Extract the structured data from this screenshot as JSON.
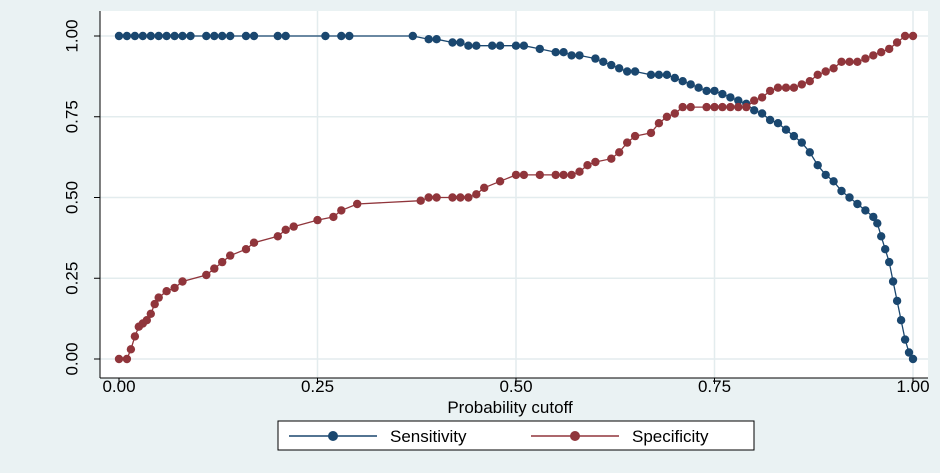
{
  "chart_data": {
    "type": "line",
    "title": "",
    "xlabel": "Probability cutoff",
    "ylabel": "",
    "xlim": [
      0,
      1
    ],
    "ylim": [
      0,
      1
    ],
    "x_ticks": [
      {
        "value": 0.0,
        "label": "0.00"
      },
      {
        "value": 0.25,
        "label": "0.25"
      },
      {
        "value": 0.5,
        "label": "0.50"
      },
      {
        "value": 0.75,
        "label": "0.75"
      },
      {
        "value": 1.0,
        "label": "1.00"
      }
    ],
    "y_ticks": [
      {
        "value": 0.0,
        "label": "0.00"
      },
      {
        "value": 0.25,
        "label": "0.25"
      },
      {
        "value": 0.5,
        "label": "0.50"
      },
      {
        "value": 0.75,
        "label": "0.75"
      },
      {
        "value": 1.0,
        "label": "1.00"
      }
    ],
    "grid": true,
    "legend_position": "bottom",
    "series": [
      {
        "name": "Sensitivity",
        "color": "#1a476f",
        "points": [
          [
            0.0,
            1.0
          ],
          [
            0.01,
            1.0
          ],
          [
            0.02,
            1.0
          ],
          [
            0.03,
            1.0
          ],
          [
            0.04,
            1.0
          ],
          [
            0.05,
            1.0
          ],
          [
            0.06,
            1.0
          ],
          [
            0.07,
            1.0
          ],
          [
            0.08,
            1.0
          ],
          [
            0.09,
            1.0
          ],
          [
            0.11,
            1.0
          ],
          [
            0.12,
            1.0
          ],
          [
            0.13,
            1.0
          ],
          [
            0.14,
            1.0
          ],
          [
            0.16,
            1.0
          ],
          [
            0.17,
            1.0
          ],
          [
            0.2,
            1.0
          ],
          [
            0.21,
            1.0
          ],
          [
            0.26,
            1.0
          ],
          [
            0.28,
            1.0
          ],
          [
            0.29,
            1.0
          ],
          [
            0.37,
            1.0
          ],
          [
            0.39,
            0.99
          ],
          [
            0.4,
            0.99
          ],
          [
            0.42,
            0.98
          ],
          [
            0.43,
            0.98
          ],
          [
            0.44,
            0.97
          ],
          [
            0.45,
            0.97
          ],
          [
            0.47,
            0.97
          ],
          [
            0.48,
            0.97
          ],
          [
            0.5,
            0.97
          ],
          [
            0.51,
            0.97
          ],
          [
            0.53,
            0.96
          ],
          [
            0.55,
            0.95
          ],
          [
            0.56,
            0.95
          ],
          [
            0.57,
            0.94
          ],
          [
            0.58,
            0.94
          ],
          [
            0.6,
            0.93
          ],
          [
            0.61,
            0.92
          ],
          [
            0.62,
            0.91
          ],
          [
            0.63,
            0.9
          ],
          [
            0.64,
            0.89
          ],
          [
            0.65,
            0.89
          ],
          [
            0.67,
            0.88
          ],
          [
            0.68,
            0.88
          ],
          [
            0.69,
            0.88
          ],
          [
            0.7,
            0.87
          ],
          [
            0.71,
            0.86
          ],
          [
            0.72,
            0.85
          ],
          [
            0.73,
            0.84
          ],
          [
            0.74,
            0.83
          ],
          [
            0.75,
            0.83
          ],
          [
            0.76,
            0.82
          ],
          [
            0.77,
            0.81
          ],
          [
            0.78,
            0.8
          ],
          [
            0.79,
            0.79
          ],
          [
            0.8,
            0.77
          ],
          [
            0.81,
            0.76
          ],
          [
            0.82,
            0.74
          ],
          [
            0.83,
            0.73
          ],
          [
            0.84,
            0.71
          ],
          [
            0.85,
            0.69
          ],
          [
            0.86,
            0.67
          ],
          [
            0.87,
            0.64
          ],
          [
            0.88,
            0.6
          ],
          [
            0.89,
            0.57
          ],
          [
            0.9,
            0.55
          ],
          [
            0.91,
            0.52
          ],
          [
            0.92,
            0.5
          ],
          [
            0.93,
            0.48
          ],
          [
            0.94,
            0.46
          ],
          [
            0.95,
            0.44
          ],
          [
            0.955,
            0.42
          ],
          [
            0.96,
            0.38
          ],
          [
            0.965,
            0.34
          ],
          [
            0.97,
            0.3
          ],
          [
            0.975,
            0.24
          ],
          [
            0.98,
            0.18
          ],
          [
            0.985,
            0.12
          ],
          [
            0.99,
            0.06
          ],
          [
            0.995,
            0.02
          ],
          [
            1.0,
            0.0
          ]
        ]
      },
      {
        "name": "Specificity",
        "color": "#90353b",
        "points": [
          [
            0.0,
            0.0
          ],
          [
            0.01,
            0.0
          ],
          [
            0.015,
            0.03
          ],
          [
            0.02,
            0.07
          ],
          [
            0.025,
            0.1
          ],
          [
            0.03,
            0.11
          ],
          [
            0.035,
            0.12
          ],
          [
            0.04,
            0.14
          ],
          [
            0.045,
            0.17
          ],
          [
            0.05,
            0.19
          ],
          [
            0.06,
            0.21
          ],
          [
            0.07,
            0.22
          ],
          [
            0.08,
            0.24
          ],
          [
            0.11,
            0.26
          ],
          [
            0.12,
            0.28
          ],
          [
            0.13,
            0.3
          ],
          [
            0.14,
            0.32
          ],
          [
            0.16,
            0.34
          ],
          [
            0.17,
            0.36
          ],
          [
            0.2,
            0.38
          ],
          [
            0.21,
            0.4
          ],
          [
            0.22,
            0.41
          ],
          [
            0.25,
            0.43
          ],
          [
            0.27,
            0.44
          ],
          [
            0.28,
            0.46
          ],
          [
            0.3,
            0.48
          ],
          [
            0.38,
            0.49
          ],
          [
            0.39,
            0.5
          ],
          [
            0.4,
            0.5
          ],
          [
            0.42,
            0.5
          ],
          [
            0.43,
            0.5
          ],
          [
            0.44,
            0.5
          ],
          [
            0.45,
            0.51
          ],
          [
            0.46,
            0.53
          ],
          [
            0.48,
            0.55
          ],
          [
            0.5,
            0.57
          ],
          [
            0.51,
            0.57
          ],
          [
            0.53,
            0.57
          ],
          [
            0.55,
            0.57
          ],
          [
            0.56,
            0.57
          ],
          [
            0.57,
            0.57
          ],
          [
            0.58,
            0.58
          ],
          [
            0.59,
            0.6
          ],
          [
            0.6,
            0.61
          ],
          [
            0.62,
            0.62
          ],
          [
            0.63,
            0.64
          ],
          [
            0.64,
            0.67
          ],
          [
            0.65,
            0.69
          ],
          [
            0.67,
            0.7
          ],
          [
            0.68,
            0.73
          ],
          [
            0.69,
            0.75
          ],
          [
            0.7,
            0.76
          ],
          [
            0.71,
            0.78
          ],
          [
            0.72,
            0.78
          ],
          [
            0.74,
            0.78
          ],
          [
            0.75,
            0.78
          ],
          [
            0.76,
            0.78
          ],
          [
            0.77,
            0.78
          ],
          [
            0.78,
            0.78
          ],
          [
            0.79,
            0.78
          ],
          [
            0.8,
            0.8
          ],
          [
            0.81,
            0.81
          ],
          [
            0.82,
            0.83
          ],
          [
            0.83,
            0.84
          ],
          [
            0.84,
            0.84
          ],
          [
            0.85,
            0.84
          ],
          [
            0.86,
            0.85
          ],
          [
            0.87,
            0.86
          ],
          [
            0.88,
            0.88
          ],
          [
            0.89,
            0.89
          ],
          [
            0.9,
            0.9
          ],
          [
            0.91,
            0.92
          ],
          [
            0.92,
            0.92
          ],
          [
            0.93,
            0.92
          ],
          [
            0.94,
            0.93
          ],
          [
            0.95,
            0.94
          ],
          [
            0.96,
            0.95
          ],
          [
            0.97,
            0.96
          ],
          [
            0.98,
            0.98
          ],
          [
            0.99,
            1.0
          ],
          [
            1.0,
            1.0
          ]
        ]
      }
    ]
  }
}
